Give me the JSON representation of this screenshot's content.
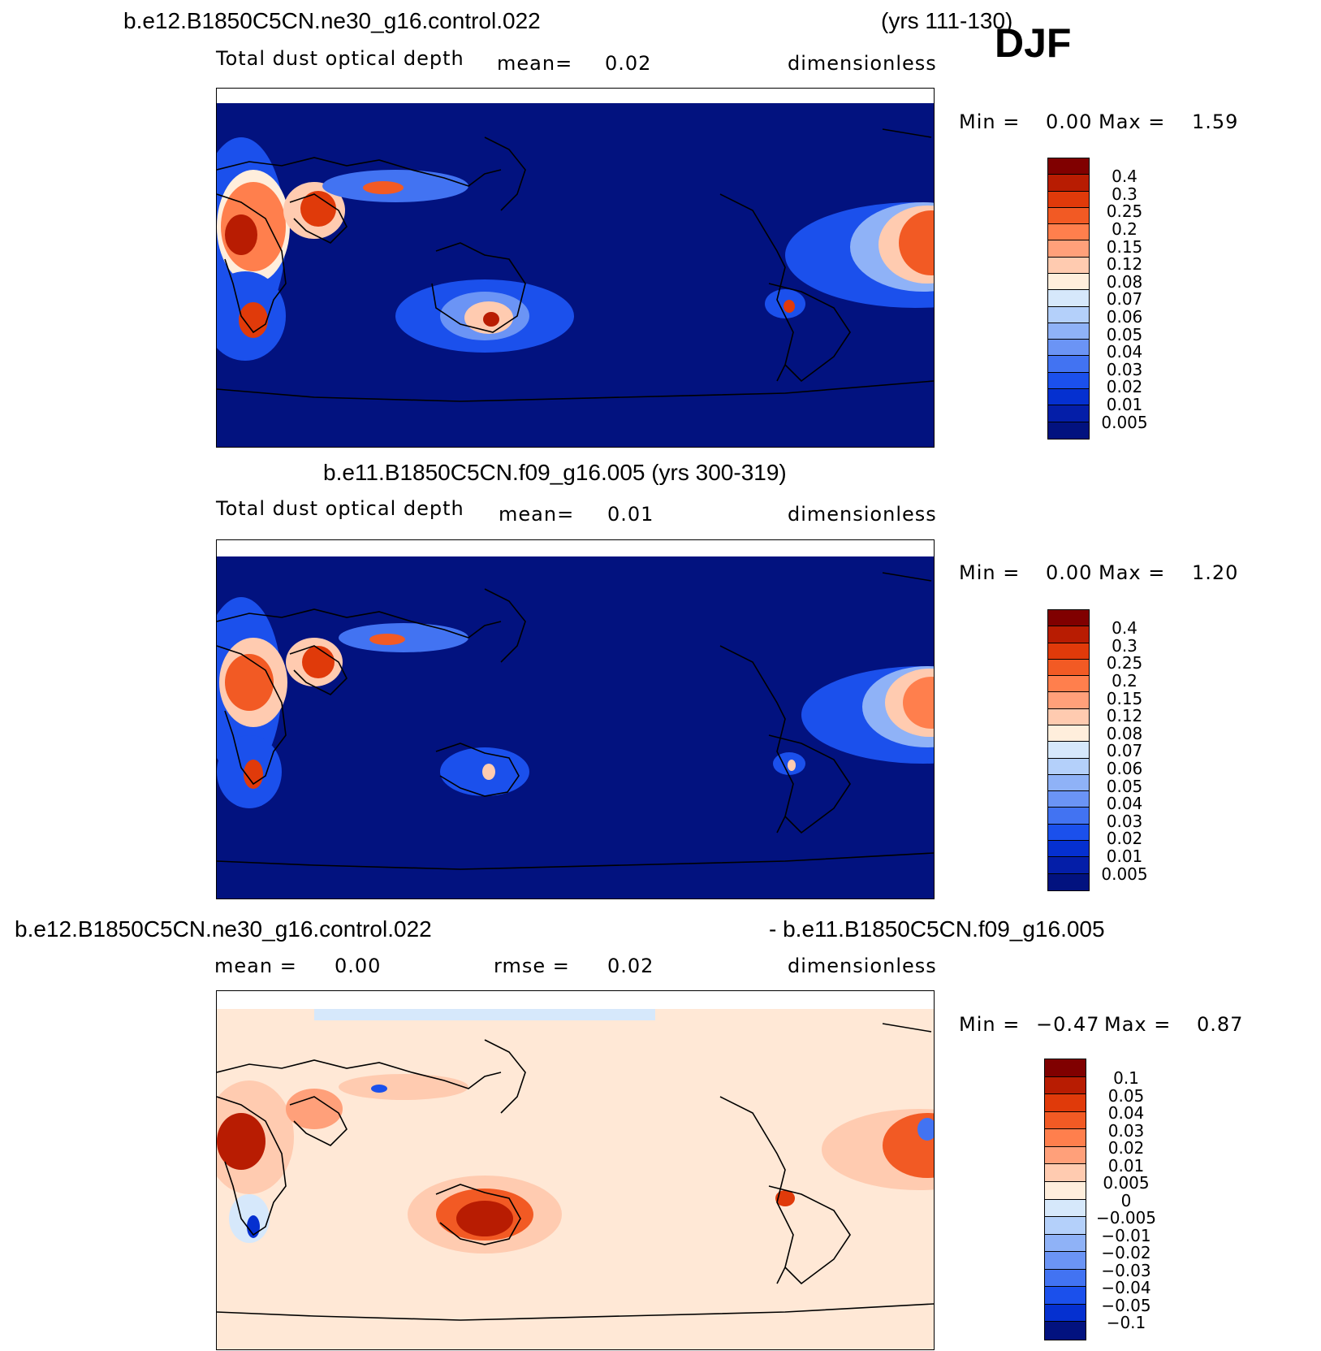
{
  "season": "DJF",
  "panel1": {
    "title_left": "b.e12.B1850C5CN.ne30_g16.control.022",
    "title_right": "(yrs 111-130)",
    "variable": "Total dust optical depth",
    "mean_label": "mean=",
    "mean_value": "0.02",
    "units": "dimensionless",
    "min_label": "Min =",
    "min_value": "0.00",
    "max_label": "Max =",
    "max_value": "1.59"
  },
  "panel2": {
    "title": "b.e11.B1850C5CN.f09_g16.005 (yrs 300-319)",
    "variable": "Total dust optical depth",
    "mean_label": "mean=",
    "mean_value": "0.01",
    "units": "dimensionless",
    "min_label": "Min =",
    "min_value": "0.00",
    "max_label": "Max =",
    "max_value": "1.20"
  },
  "panel3": {
    "title_left": "b.e12.B1850C5CN.ne30_g16.control.022",
    "title_right": "- b.e11.B1850C5CN.f09_g16.005",
    "mean_label": "mean =",
    "mean_value": "0.00",
    "rmse_label": "rmse =",
    "rmse_value": "0.02",
    "units": "dimensionless",
    "min_label": "Min =",
    "min_value": "−0.47",
    "max_label": "Max =",
    "max_value": "0.87"
  },
  "colorbar_abs": {
    "labels": [
      "0.4",
      "0.3",
      "0.25",
      "0.2",
      "0.15",
      "0.12",
      "0.08",
      "0.07",
      "0.06",
      "0.05",
      "0.04",
      "0.03",
      "0.02",
      "0.01",
      "0.005"
    ],
    "colors": [
      "#800000",
      "#b81c02",
      "#e03a0a",
      "#f25a24",
      "#ff7f4d",
      "#ffa07a",
      "#ffcbb0",
      "#ffeedc",
      "#d6e8fb",
      "#b4d0fa",
      "#8fb2f7",
      "#6b94f5",
      "#4273f2",
      "#1b50ec",
      "#0530d0",
      "#041ea8",
      "#02127f"
    ]
  },
  "colorbar_diff": {
    "labels": [
      "0.1",
      "0.05",
      "0.04",
      "0.03",
      "0.02",
      "0.01",
      "0.005",
      "0",
      "−0.005",
      "−0.01",
      "−0.02",
      "−0.03",
      "−0.04",
      "−0.05",
      "−0.1"
    ],
    "colors": [
      "#800000",
      "#b81c02",
      "#e03a0a",
      "#f25a24",
      "#ff7f4d",
      "#ffa07a",
      "#ffcbb0",
      "#ffeedc",
      "#d6e8fb",
      "#b4d0fa",
      "#8fb2f7",
      "#6b94f5",
      "#4273f2",
      "#1b50ec",
      "#0530d0",
      "#02127f"
    ]
  },
  "map_colors": {
    "ocean_abs": "#02127f",
    "ocean_diff": "#ffe8d6",
    "coast": "#000000"
  }
}
